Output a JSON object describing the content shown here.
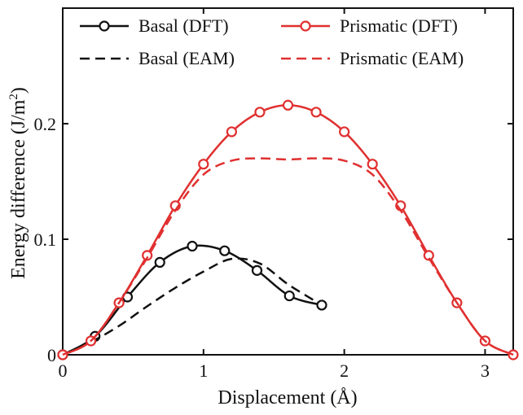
{
  "chart_data": {
    "type": "line",
    "title": "",
    "xlabel": "Displacement (Å)",
    "ylabel": "Energy difference (J/m",
    "ylabel_sup": "2",
    "ylabel_close": ")",
    "xlim": [
      0,
      3.2
    ],
    "ylim": [
      0,
      0.3
    ],
    "xticks": [
      0,
      1,
      2,
      3
    ],
    "xtick_labels": [
      "0",
      "1",
      "2",
      "3"
    ],
    "yticks": [
      0,
      0.1,
      0.2
    ],
    "ytick_labels": [
      "0",
      "0.1",
      "0.2"
    ],
    "grid": false,
    "legend_position": "top",
    "series": [
      {
        "name": "Basal (DFT)",
        "color": "#111111",
        "style": "solid-markers",
        "x": [
          0,
          0.23,
          0.46,
          0.69,
          0.92,
          1.15,
          1.38,
          1.61,
          1.84
        ],
        "y": [
          0,
          0.016,
          0.05,
          0.08,
          0.094,
          0.09,
          0.073,
          0.051,
          0.043
        ]
      },
      {
        "name": "Basal (EAM)",
        "color": "#111111",
        "style": "dashed",
        "x": [
          0,
          0.2,
          0.4,
          0.6,
          0.8,
          1.0,
          1.2,
          1.4,
          1.6,
          1.8
        ],
        "y": [
          0,
          0.011,
          0.025,
          0.042,
          0.058,
          0.072,
          0.083,
          0.079,
          0.061,
          0.046
        ]
      },
      {
        "name": "Prismatic (DFT)",
        "color": "#e03030",
        "style": "solid-markers",
        "x": [
          0,
          0.2,
          0.4,
          0.6,
          0.8,
          1.0,
          1.2,
          1.4,
          1.6,
          1.8,
          2.0,
          2.2,
          2.4,
          2.6,
          2.8,
          3.0,
          3.2
        ],
        "y": [
          0,
          0.012,
          0.045,
          0.086,
          0.129,
          0.165,
          0.193,
          0.21,
          0.216,
          0.21,
          0.193,
          0.165,
          0.129,
          0.086,
          0.045,
          0.012,
          0
        ]
      },
      {
        "name": "Prismatic (EAM)",
        "color": "#e03030",
        "style": "dashed",
        "x": [
          0,
          0.2,
          0.4,
          0.6,
          0.8,
          1.0,
          1.2,
          1.4,
          1.6,
          1.8,
          2.0,
          2.2,
          2.4,
          2.6,
          2.8,
          3.0,
          3.2
        ],
        "y": [
          0,
          0.012,
          0.045,
          0.084,
          0.125,
          0.156,
          0.168,
          0.17,
          0.169,
          0.17,
          0.168,
          0.156,
          0.125,
          0.084,
          0.045,
          0.012,
          0
        ]
      }
    ]
  }
}
